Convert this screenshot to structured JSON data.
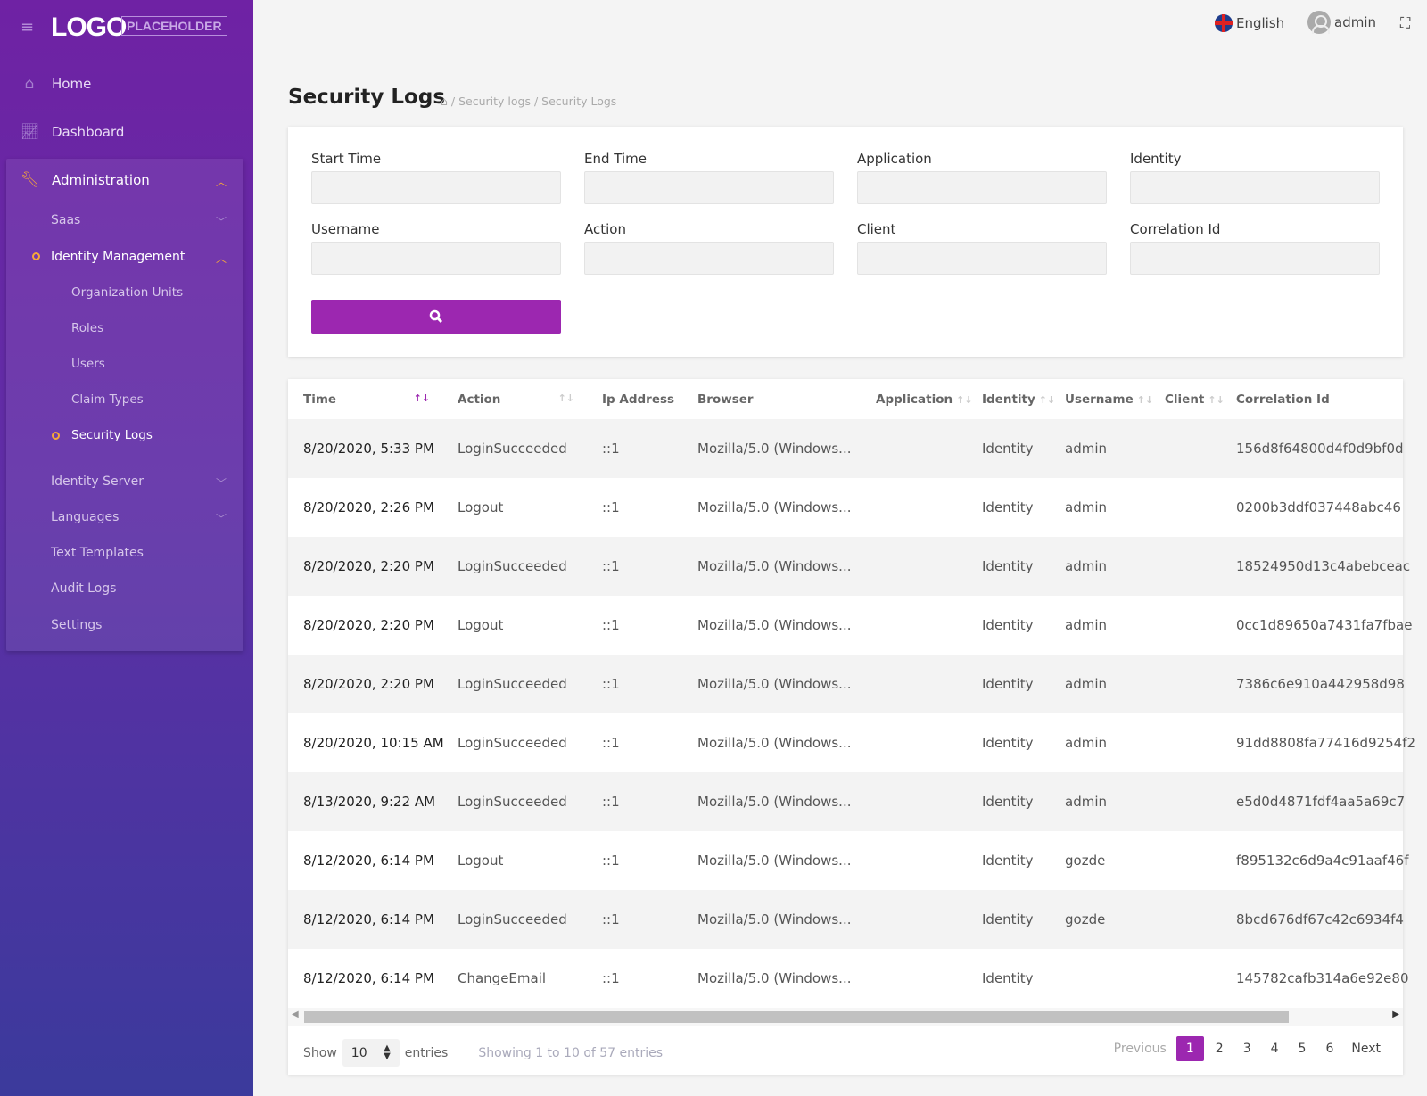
{
  "brand": {
    "logo": "LOGO",
    "placeholder": "PLACEHOLDER"
  },
  "sidebar": {
    "items": [
      {
        "label": "Home",
        "icon": "home-icon"
      },
      {
        "label": "Dashboard",
        "icon": "chart-icon"
      },
      {
        "label": "Administration",
        "icon": "wrench-icon"
      }
    ],
    "admin_items": {
      "saas": "Saas",
      "identity_management": "Identity Management",
      "organization_units": "Organization Units",
      "roles": "Roles",
      "users": "Users",
      "claim_types": "Claim Types",
      "security_logs": "Security Logs",
      "identity_server": "Identity Server",
      "languages": "Languages",
      "text_templates": "Text Templates",
      "audit_logs": "Audit Logs",
      "settings": "Settings"
    }
  },
  "topbar": {
    "language": "English",
    "user": "admin"
  },
  "page": {
    "title": "Security Logs",
    "breadcrumb": [
      "Security logs",
      "Security Logs"
    ]
  },
  "filters": {
    "start_time": "Start Time",
    "end_time": "End Time",
    "application": "Application",
    "identity": "Identity",
    "username": "Username",
    "action": "Action",
    "client": "Client",
    "correlation_id": "Correlation Id"
  },
  "table": {
    "columns": [
      "Time",
      "Action",
      "Ip Address",
      "Browser",
      "Application",
      "Identity",
      "Username",
      "Client",
      "Correlation Id"
    ],
    "rows": [
      [
        "8/20/2020, 5:33 PM",
        "LoginSucceeded",
        "::1",
        "Mozilla/5.0 (Windows...",
        "",
        "Identity",
        "admin",
        "",
        "156d8f64800d4f0d9bf0d"
      ],
      [
        "8/20/2020, 2:26 PM",
        "Logout",
        "::1",
        "Mozilla/5.0 (Windows...",
        "",
        "Identity",
        "admin",
        "",
        "0200b3ddf037448abc46"
      ],
      [
        "8/20/2020, 2:20 PM",
        "LoginSucceeded",
        "::1",
        "Mozilla/5.0 (Windows...",
        "",
        "Identity",
        "admin",
        "",
        "18524950d13c4abebceac"
      ],
      [
        "8/20/2020, 2:20 PM",
        "Logout",
        "::1",
        "Mozilla/5.0 (Windows...",
        "",
        "Identity",
        "admin",
        "",
        "0cc1d89650a7431fa7fbae"
      ],
      [
        "8/20/2020, 2:20 PM",
        "LoginSucceeded",
        "::1",
        "Mozilla/5.0 (Windows...",
        "",
        "Identity",
        "admin",
        "",
        "7386c6e910a442958d98"
      ],
      [
        "8/20/2020, 10:15 AM",
        "LoginSucceeded",
        "::1",
        "Mozilla/5.0 (Windows...",
        "",
        "Identity",
        "admin",
        "",
        "91dd8808fa77416d9254f2"
      ],
      [
        "8/13/2020, 9:22 AM",
        "LoginSucceeded",
        "::1",
        "Mozilla/5.0 (Windows...",
        "",
        "Identity",
        "admin",
        "",
        "e5d0d4871fdf4aa5a69c7"
      ],
      [
        "8/12/2020, 6:14 PM",
        "Logout",
        "::1",
        "Mozilla/5.0 (Windows...",
        "",
        "Identity",
        "gozde",
        "",
        "f895132c6d9a4c91aaf46f"
      ],
      [
        "8/12/2020, 6:14 PM",
        "LoginSucceeded",
        "::1",
        "Mozilla/5.0 (Windows...",
        "",
        "Identity",
        "gozde",
        "",
        "8bcd676df67c42c6934f4"
      ],
      [
        "8/12/2020, 6:14 PM",
        "ChangeEmail",
        "::1",
        "Mozilla/5.0 (Windows...",
        "",
        "Identity",
        "",
        "",
        "145782cafb314a6e92e80"
      ]
    ]
  },
  "footer": {
    "show": "Show",
    "page_size": "10",
    "entries": "entries",
    "info": "Showing 1 to 10 of 57 entries"
  },
  "pagination": {
    "previous": "Previous",
    "pages": [
      "1",
      "2",
      "3",
      "4",
      "5",
      "6"
    ],
    "current": "1",
    "next": "Next"
  },
  "colors": {
    "accent": "#9c27b0",
    "sidebar_top": "#6f22a4",
    "sidebar_bottom": "#3b3a9c",
    "active": "#f7a838"
  }
}
